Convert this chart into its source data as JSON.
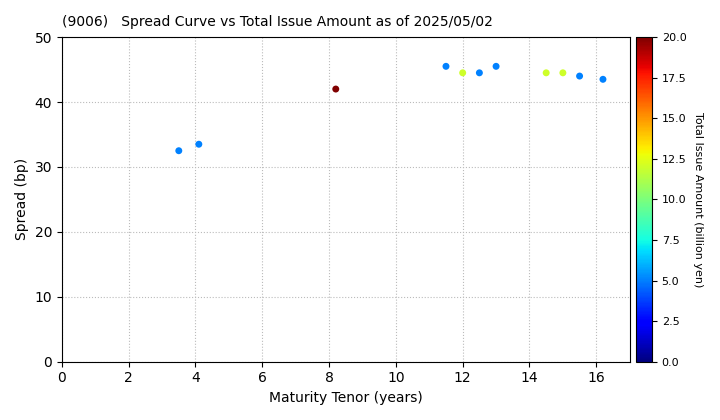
{
  "title": "(9006)   Spread Curve vs Total Issue Amount as of 2025/05/02",
  "xlabel": "Maturity Tenor (years)",
  "ylabel": "Spread (bp)",
  "colorbar_label": "Total Issue Amount (billion yen)",
  "xlim": [
    0,
    17
  ],
  "ylim": [
    0,
    50
  ],
  "xticks": [
    0,
    2,
    4,
    6,
    8,
    10,
    12,
    14,
    16
  ],
  "yticks": [
    0,
    10,
    20,
    30,
    40,
    50
  ],
  "colorbar_min": 0.0,
  "colorbar_max": 20.0,
  "colorbar_ticks": [
    0.0,
    2.5,
    5.0,
    7.5,
    10.0,
    12.5,
    15.0,
    17.5,
    20.0
  ],
  "scatter_x": [
    3.5,
    4.1,
    8.2,
    11.5,
    12.0,
    12.5,
    13.0,
    14.5,
    15.0,
    15.5,
    16.2
  ],
  "scatter_y": [
    32.5,
    33.5,
    42.0,
    45.5,
    44.5,
    44.5,
    45.5,
    44.5,
    44.5,
    44.0,
    43.5
  ],
  "scatter_amounts": [
    5.0,
    5.0,
    20.0,
    5.0,
    12.0,
    5.0,
    5.0,
    12.0,
    12.0,
    5.0,
    5.0
  ],
  "marker_size": 25,
  "background_color": "#ffffff",
  "grid_color": "#bbbbbb",
  "colormap": "jet"
}
